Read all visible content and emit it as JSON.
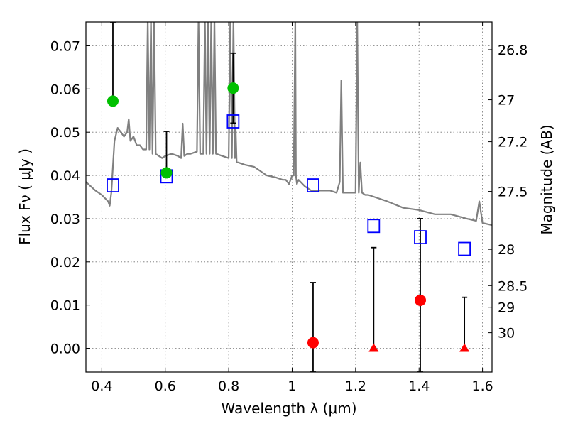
{
  "chart_data": {
    "type": "scatter",
    "title": "",
    "xlabel": "Wavelength  λ (μm)",
    "ylabel": "Flux  Fν  ( μJy )",
    "y2label": "Magnitude (AB)",
    "xlim": [
      0.35,
      1.63
    ],
    "ylim": [
      -0.0055,
      0.0755
    ],
    "x_ticks": [
      0.4,
      0.6,
      0.8,
      1.0,
      1.2,
      1.4,
      1.6
    ],
    "x_tick_labels": [
      "0.4",
      "0.6",
      "0.8",
      "1",
      "1.2",
      "1.4",
      "1.6"
    ],
    "y_ticks": [
      0.0,
      0.01,
      0.02,
      0.03,
      0.04,
      0.05,
      0.06,
      0.07
    ],
    "y_tick_labels": [
      "0.00",
      "0.01",
      "0.02",
      "0.03",
      "0.04",
      "0.05",
      "0.06",
      "0.07"
    ],
    "magnitude_ticks": [
      {
        "label": "26.8",
        "flux": 0.0691
      },
      {
        "label": "27",
        "flux": 0.0575
      },
      {
        "label": "27.2",
        "flux": 0.0478
      },
      {
        "label": "27.5",
        "flux": 0.0363
      },
      {
        "label": "28",
        "flux": 0.0229
      },
      {
        "label": "28.5",
        "flux": 0.0145
      },
      {
        "label": "29",
        "flux": 0.0095
      },
      {
        "label": "30",
        "flux": 0.0036
      }
    ],
    "grid": true,
    "series": [
      {
        "kind": "model_spectrum",
        "color": "#808080",
        "x": [
          0.35,
          0.38,
          0.4,
          0.42,
          0.425,
          0.43,
          0.44,
          0.45,
          0.46,
          0.47,
          0.48,
          0.485,
          0.49,
          0.5,
          0.51,
          0.52,
          0.53,
          0.54,
          0.545,
          0.55,
          0.555,
          0.56,
          0.565,
          0.57,
          0.58,
          0.59,
          0.6,
          0.62,
          0.64,
          0.65,
          0.655,
          0.66,
          0.67,
          0.68,
          0.7,
          0.705,
          0.71,
          0.72,
          0.725,
          0.73,
          0.735,
          0.74,
          0.745,
          0.75,
          0.755,
          0.76,
          0.78,
          0.8,
          0.805,
          0.81,
          0.815,
          0.82,
          0.822,
          0.825,
          0.83,
          0.85,
          0.88,
          0.9,
          0.92,
          0.95,
          0.97,
          0.98,
          0.99,
          1.0,
          1.005,
          1.01,
          1.012,
          1.015,
          1.02,
          1.04,
          1.06,
          1.08,
          1.1,
          1.12,
          1.14,
          1.15,
          1.155,
          1.16,
          1.18,
          1.2,
          1.205,
          1.21,
          1.215,
          1.22,
          1.23,
          1.24,
          1.26,
          1.3,
          1.35,
          1.4,
          1.45,
          1.5,
          1.55,
          1.58,
          1.59,
          1.6,
          1.63
        ],
        "y": [
          0.0385,
          0.0365,
          0.0355,
          0.034,
          0.033,
          0.036,
          0.048,
          0.051,
          0.05,
          0.049,
          0.05,
          0.053,
          0.048,
          0.049,
          0.047,
          0.047,
          0.046,
          0.046,
          0.076,
          0.046,
          0.076,
          0.045,
          0.076,
          0.045,
          0.0445,
          0.044,
          0.0445,
          0.045,
          0.0445,
          0.044,
          0.052,
          0.0445,
          0.045,
          0.045,
          0.0455,
          0.076,
          0.045,
          0.045,
          0.076,
          0.045,
          0.076,
          0.045,
          0.076,
          0.045,
          0.076,
          0.045,
          0.0445,
          0.044,
          0.076,
          0.044,
          0.076,
          0.044,
          0.051,
          0.043,
          0.043,
          0.0425,
          0.042,
          0.041,
          0.04,
          0.0395,
          0.039,
          0.039,
          0.038,
          0.04,
          0.04,
          0.076,
          0.04,
          0.038,
          0.039,
          0.0375,
          0.0365,
          0.0365,
          0.0365,
          0.0365,
          0.036,
          0.0385,
          0.062,
          0.036,
          0.036,
          0.036,
          0.076,
          0.036,
          0.043,
          0.036,
          0.0355,
          0.0355,
          0.035,
          0.034,
          0.0325,
          0.032,
          0.031,
          0.031,
          0.03,
          0.0295,
          0.034,
          0.029,
          0.0285
        ]
      },
      {
        "kind": "model_magnitudes",
        "marker": "open-square",
        "color": "#0000ff",
        "x": [
          0.435,
          0.604,
          0.814,
          1.066,
          1.257,
          1.404,
          1.543
        ],
        "y": [
          0.0377,
          0.0398,
          0.0525,
          0.0377,
          0.0283,
          0.0257,
          0.023
        ]
      },
      {
        "kind": "detections",
        "marker": "filled-circle",
        "color": "#00c000",
        "x": [
          0.435,
          0.604,
          0.814
        ],
        "y": [
          0.0572,
          0.0406,
          0.0602
        ],
        "yerr_low": [
          0.0572,
          0.0405,
          0.0521
        ],
        "yerr_high": [
          0.0755,
          0.0502,
          0.0683
        ]
      },
      {
        "kind": "non_detections",
        "marker": "filled-circle",
        "color": "#ff0000",
        "x": [
          1.066,
          1.404
        ],
        "y": [
          0.0013,
          0.0111
        ],
        "yerr_low": [
          -0.0055,
          -0.0055
        ],
        "yerr_high": [
          0.0152,
          0.03
        ]
      },
      {
        "kind": "non_detections_zero",
        "marker": "filled-triangle",
        "color": "#ff0000",
        "x": [
          1.257,
          1.543
        ],
        "y": [
          0.0,
          0.0
        ],
        "yerr_low": [
          0.0,
          0.0
        ],
        "yerr_high": [
          0.0233,
          0.0118
        ]
      }
    ]
  }
}
